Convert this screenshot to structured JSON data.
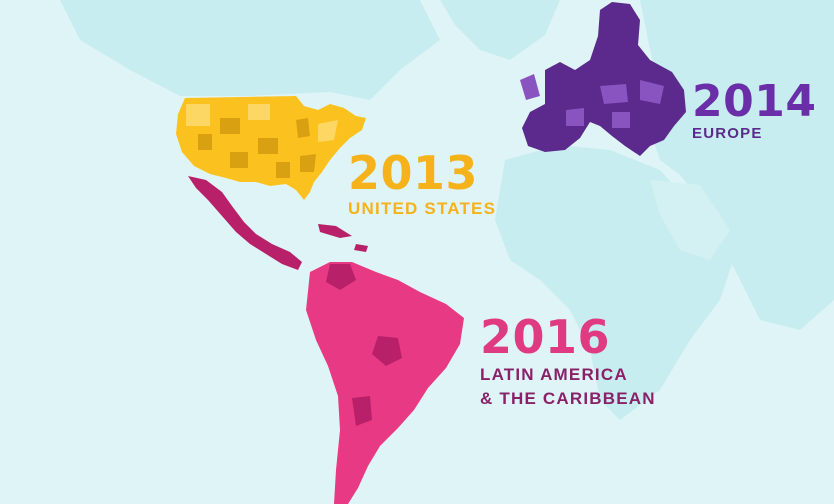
{
  "colors": {
    "ocean": "#dff4f7",
    "land_background": "#c5ecef",
    "united_states": "#fbc21f",
    "europe": "#5b2a8c",
    "latin_america": "#d62a79"
  },
  "regions": {
    "united_states": {
      "year": "2013",
      "name": "UNITED STATES"
    },
    "europe": {
      "year": "2014",
      "name": "EUROPE"
    },
    "latin_america": {
      "year": "2016",
      "name_line1": "LATIN AMERICA",
      "name_line2": "& THE CARIBBEAN"
    }
  }
}
